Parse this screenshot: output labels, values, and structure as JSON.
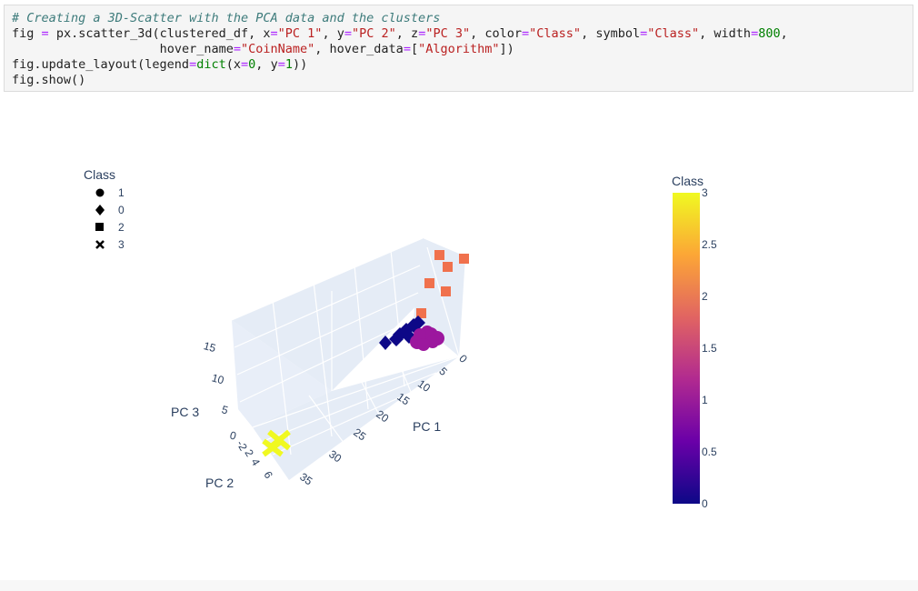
{
  "code": {
    "comment": "# Creating a 3D-Scatter with the PCA data and the clusters",
    "line2": {
      "fig": "fig",
      "call": "px.scatter_3d(clustered_df, ",
      "x_kw": "x",
      "x_val": "\"PC 1\"",
      "y_kw": "y",
      "y_val": "\"PC 2\"",
      "z_kw": "z",
      "z_val": "\"PC 3\"",
      "color_kw": "color",
      "color_val": "\"Class\"",
      "symbol_kw": "symbol",
      "symbol_val": "\"Class\"",
      "width_kw": "width",
      "width_val": "800"
    },
    "line3": {
      "hover_kw": "hover_name",
      "hover_val": "\"CoinName\"",
      "hd_kw": "hover_data",
      "hd_val": "\"Algorithm\""
    },
    "line4": {
      "text": "fig.update_layout(legend",
      "dict": "dict",
      "x_kw": "x",
      "x_val": "0",
      "y_kw": "y",
      "y_val": "1"
    },
    "line5": "fig.show()"
  },
  "chart_data": {
    "type": "scatter",
    "title": "",
    "axes": {
      "x": {
        "label": "PC 1",
        "ticks": [
          "0",
          "5",
          "10",
          "15",
          "20",
          "25",
          "30",
          "35"
        ]
      },
      "y": {
        "label": "PC 2",
        "ticks": [
          "0",
          "2",
          "4",
          "6",
          "-2"
        ]
      },
      "z": {
        "label": "PC 3",
        "ticks": [
          "0",
          "5",
          "10",
          "15"
        ]
      }
    },
    "legend": {
      "title": "Class",
      "placement": "top-left",
      "items": [
        {
          "label": "1",
          "symbol": "circle"
        },
        {
          "label": "0",
          "symbol": "diamond"
        },
        {
          "label": "2",
          "symbol": "square"
        },
        {
          "label": "3",
          "symbol": "x"
        }
      ]
    },
    "colorbar": {
      "title": "Class",
      "ticks": [
        "3",
        "2.5",
        "2",
        "1.5",
        "1",
        "0.5",
        "0"
      ],
      "range": [
        0,
        3
      ],
      "colors": [
        "#0d0887",
        "#6a00a8",
        "#b12a90",
        "#e16462",
        "#fca636",
        "#f0f921"
      ]
    },
    "series": [
      {
        "name": "0",
        "color": "#0d0887",
        "symbol": "diamond"
      },
      {
        "name": "1",
        "color": "#9c179e",
        "symbol": "circle"
      },
      {
        "name": "2",
        "color": "#f0714d",
        "symbol": "square"
      },
      {
        "name": "3",
        "color": "#f0f921",
        "symbol": "x"
      }
    ]
  }
}
